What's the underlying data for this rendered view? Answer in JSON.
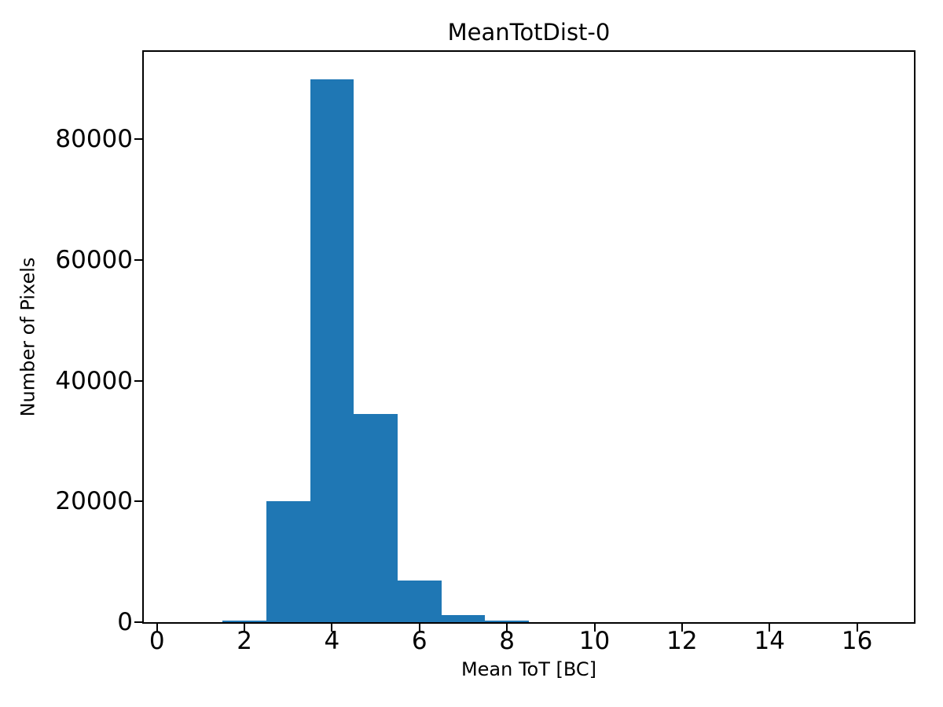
{
  "chart_data": {
    "type": "bar",
    "subtype": "histogram",
    "title": "MeanTotDist-0",
    "xlabel": "Mean ToT [BC]",
    "ylabel": "Number of Pixels",
    "bar_color": "#1f77b4",
    "text_color": "#000000",
    "background": "#ffffff",
    "grid": false,
    "legend": null,
    "bin_width": 1,
    "bin_centers": [
      1,
      2,
      3,
      4,
      5,
      6,
      7,
      8,
      9,
      10,
      11,
      12,
      13,
      14,
      15,
      16
    ],
    "values": [
      0,
      250,
      20100,
      90000,
      34500,
      6900,
      1200,
      300,
      0,
      0,
      0,
      0,
      0,
      0,
      0,
      0
    ],
    "xlim": [
      -0.3,
      17.3
    ],
    "ylim": [
      0,
      94500
    ],
    "xticks": [
      0,
      2,
      4,
      6,
      8,
      10,
      12,
      14,
      16
    ],
    "xtick_labels": [
      "0",
      "2",
      "4",
      "6",
      "8",
      "10",
      "12",
      "14",
      "16"
    ],
    "yticks": [
      0,
      20000,
      40000,
      60000,
      80000
    ],
    "ytick_labels": [
      "0",
      "20000",
      "40000",
      "60000",
      "80000"
    ]
  }
}
